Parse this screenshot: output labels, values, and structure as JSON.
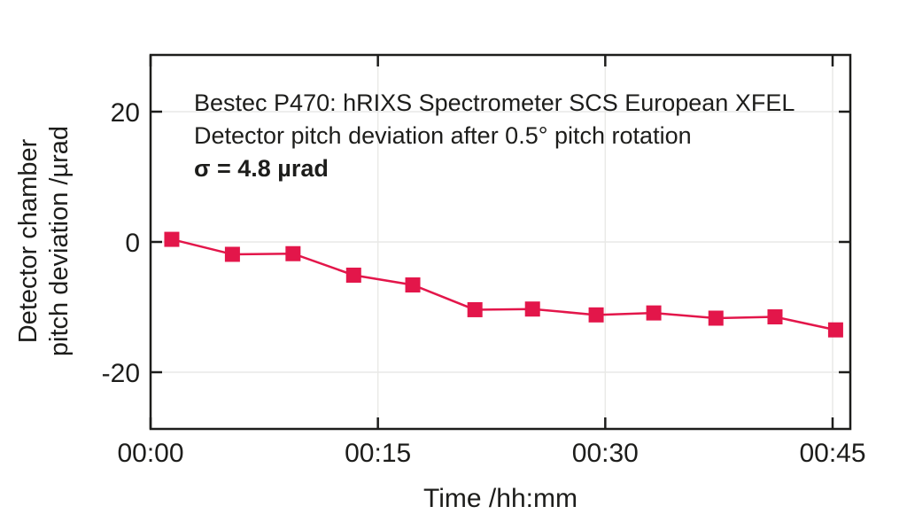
{
  "chart_data": {
    "type": "line",
    "title": "Bestec P470: hRIXS Spectrometer SCS European XFEL",
    "subtitle": "Detector pitch deviation after 0.5° pitch rotation",
    "sigma_label": "σ = 4.8 µrad",
    "xlabel": "Time /hh:mm",
    "ylabel": "Detector chamber pitch deviation /µrad",
    "ylabel_line1": "Detector chamber",
    "ylabel_line2": "pitch deviation /µrad",
    "x_unit": "minutes",
    "y_unit": "µrad",
    "x": [
      1.4,
      5.4,
      9.4,
      13.4,
      17.3,
      21.4,
      25.2,
      29.4,
      33.2,
      37.3,
      41.2,
      45.2
    ],
    "y": [
      0.4,
      -1.9,
      -1.8,
      -5.1,
      -6.6,
      -10.4,
      -10.3,
      -11.2,
      -10.9,
      -11.7,
      -11.5,
      -13.5
    ],
    "x_ticks": [
      {
        "minutes": 0,
        "label": "00:00"
      },
      {
        "minutes": 15,
        "label": "00:15"
      },
      {
        "minutes": 30,
        "label": "00:30"
      },
      {
        "minutes": 45,
        "label": "00:45"
      }
    ],
    "y_ticks": [
      {
        "value": 20,
        "label": "20"
      },
      {
        "value": 0,
        "label": "0"
      },
      {
        "value": -20,
        "label": "-20"
      }
    ],
    "xlim_minutes": [
      0,
      46.2
    ],
    "ylim": [
      -28.6,
      28.6
    ],
    "grid": true,
    "legend": "none",
    "marker": "square",
    "series_color": "#e3164a",
    "axis_color": "#1d1d1b",
    "grid_color": "#e9e9e7",
    "background": "#ffffff"
  }
}
